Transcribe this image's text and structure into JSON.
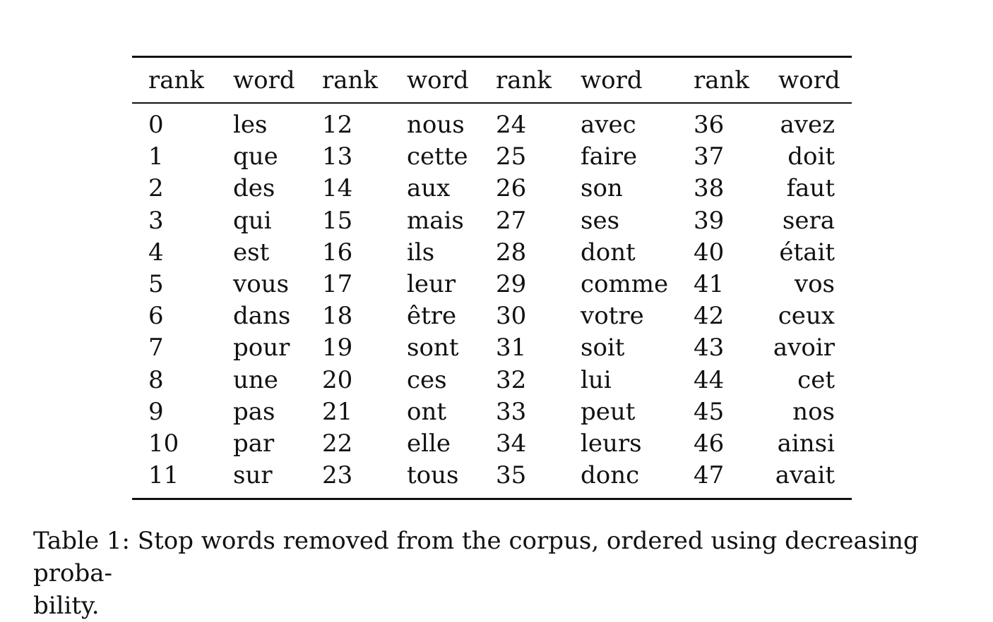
{
  "table": {
    "headers": [
      "rank",
      "word",
      "rank",
      "word",
      "rank",
      "word",
      "rank",
      "word"
    ],
    "rows": [
      [
        "0",
        "les",
        "12",
        "nous",
        "24",
        "avec",
        "36",
        "avez"
      ],
      [
        "1",
        "que",
        "13",
        "cette",
        "25",
        "faire",
        "37",
        "doit"
      ],
      [
        "2",
        "des",
        "14",
        "aux",
        "26",
        "son",
        "38",
        "faut"
      ],
      [
        "3",
        "qui",
        "15",
        "mais",
        "27",
        "ses",
        "39",
        "sera"
      ],
      [
        "4",
        "est",
        "16",
        "ils",
        "28",
        "dont",
        "40",
        "était"
      ],
      [
        "5",
        "vous",
        "17",
        "leur",
        "29",
        "comme",
        "41",
        "vos"
      ],
      [
        "6",
        "dans",
        "18",
        "être",
        "30",
        "votre",
        "42",
        "ceux"
      ],
      [
        "7",
        "pour",
        "19",
        "sont",
        "31",
        "soit",
        "43",
        "avoir"
      ],
      [
        "8",
        "une",
        "20",
        "ces",
        "32",
        "lui",
        "44",
        "cet"
      ],
      [
        "9",
        "pas",
        "21",
        "ont",
        "33",
        "peut",
        "45",
        "nos"
      ],
      [
        "10",
        "par",
        "22",
        "elle",
        "34",
        "leurs",
        "46",
        "ainsi"
      ],
      [
        "11",
        "sur",
        "23",
        "tous",
        "35",
        "donc",
        "47",
        "avait"
      ]
    ]
  },
  "caption": {
    "line1": "Table 1: Stop words removed from the corpus, ordered using decreasing proba-",
    "line2": "bility."
  }
}
